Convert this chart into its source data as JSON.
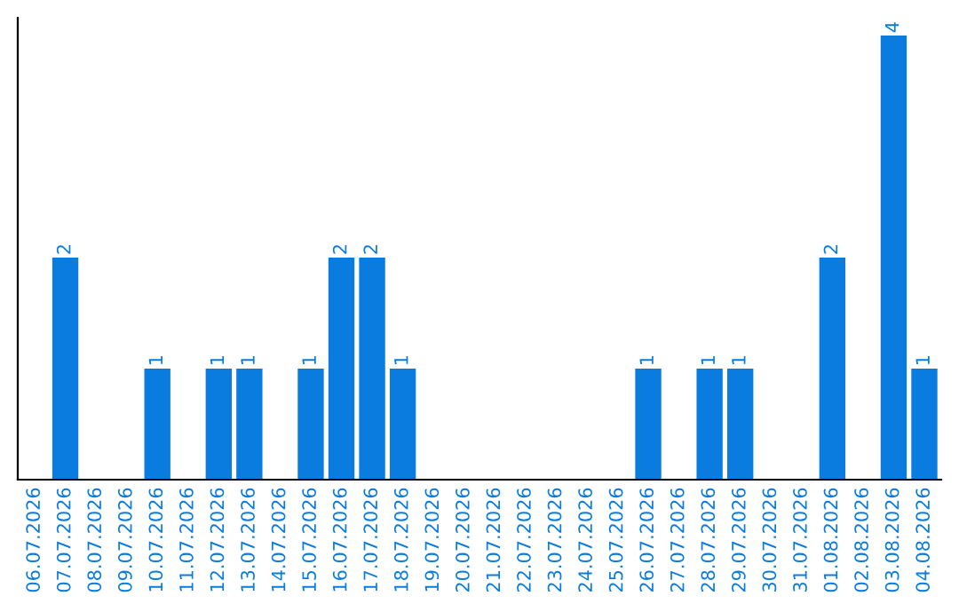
{
  "chart_data": {
    "type": "bar",
    "categories": [
      "06.07.2026",
      "07.07.2026",
      "08.07.2026",
      "09.07.2026",
      "10.07.2026",
      "11.07.2026",
      "12.07.2026",
      "13.07.2026",
      "14.07.2026",
      "15.07.2026",
      "16.07.2026",
      "17.07.2026",
      "18.07.2026",
      "19.07.2026",
      "20.07.2026",
      "21.07.2026",
      "22.07.2026",
      "23.07.2026",
      "24.07.2026",
      "25.07.2026",
      "26.07.2026",
      "27.07.2026",
      "28.07.2026",
      "29.07.2026",
      "30.07.2026",
      "31.07.2026",
      "01.08.2026",
      "02.08.2026",
      "03.08.2026",
      "04.08.2026"
    ],
    "values": [
      0,
      2,
      0,
      0,
      1,
      0,
      1,
      1,
      0,
      1,
      2,
      2,
      1,
      0,
      0,
      0,
      0,
      0,
      0,
      0,
      1,
      0,
      1,
      1,
      0,
      0,
      2,
      0,
      4,
      1
    ],
    "value_labels": [
      null,
      "2",
      null,
      null,
      "1",
      null,
      "1",
      "1",
      null,
      "1",
      "2",
      "2",
      "1",
      null,
      null,
      null,
      null,
      null,
      null,
      null,
      "1",
      null,
      "1",
      "1",
      null,
      null,
      "2",
      null,
      "4",
      "1"
    ],
    "color": "#0a7ce0",
    "tick_labels": "x",
    "grid": false
  }
}
